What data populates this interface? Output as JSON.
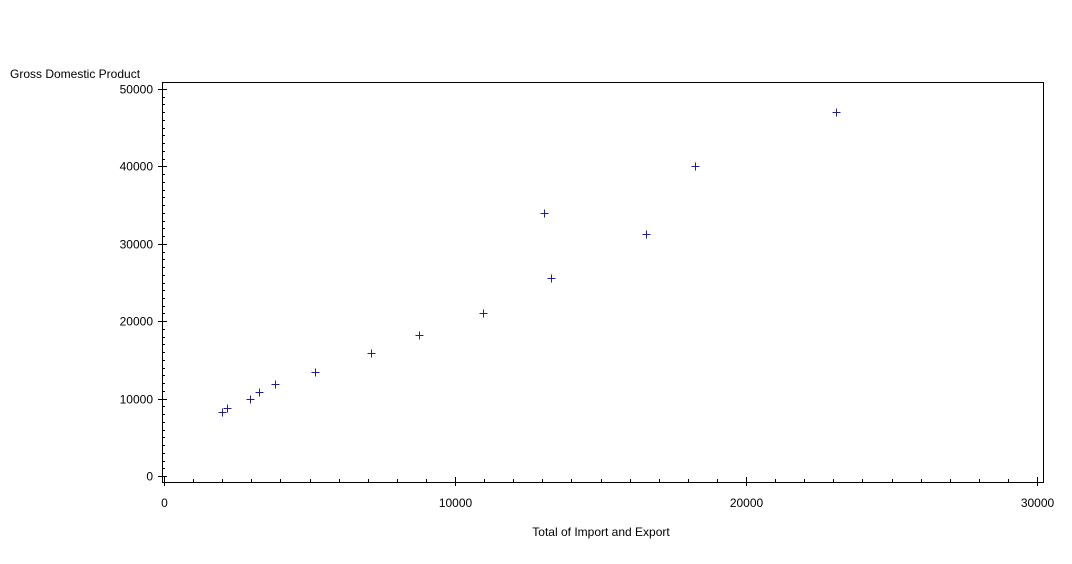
{
  "colors": {
    "background": "#ffffff",
    "axis": "#000000",
    "marker": "#1f1f8f"
  },
  "chart_data": {
    "type": "scatter",
    "title": "",
    "xlabel": "Total of Import and Export",
    "ylabel": "Gross Domestic Product",
    "xlim": [
      0,
      30000
    ],
    "ylim": [
      0,
      50000
    ],
    "x_ticks": [
      0,
      10000,
      20000,
      30000
    ],
    "y_ticks": [
      0,
      10000,
      20000,
      30000,
      40000,
      50000
    ],
    "x_tick_labels": [
      "0",
      "10000",
      "20000",
      "30000"
    ],
    "y_tick_labels": [
      "0",
      "10000",
      "20000",
      "30000",
      "40000",
      "50000"
    ],
    "x_minor_step": 1000,
    "y_minor_step": 1000,
    "grid": false,
    "marker": "plus",
    "points": [
      {
        "x": 2000,
        "y": 8300
      },
      {
        "x": 2150,
        "y": 8800
      },
      {
        "x": 2950,
        "y": 9900
      },
      {
        "x": 3250,
        "y": 10900
      },
      {
        "x": 3800,
        "y": 11900
      },
      {
        "x": 5200,
        "y": 13500
      },
      {
        "x": 7100,
        "y": 15900
      },
      {
        "x": 8750,
        "y": 18200
      },
      {
        "x": 10950,
        "y": 21100
      },
      {
        "x": 13050,
        "y": 34000
      },
      {
        "x": 13300,
        "y": 25600
      },
      {
        "x": 16550,
        "y": 31300
      },
      {
        "x": 18250,
        "y": 40100
      },
      {
        "x": 23100,
        "y": 47000
      }
    ]
  }
}
